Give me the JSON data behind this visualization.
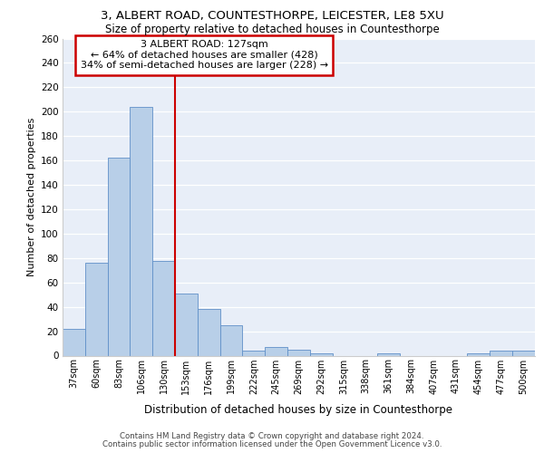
{
  "title1": "3, ALBERT ROAD, COUNTESTHORPE, LEICESTER, LE8 5XU",
  "title2": "Size of property relative to detached houses in Countesthorpe",
  "xlabel": "Distribution of detached houses by size in Countesthorpe",
  "ylabel": "Number of detached properties",
  "categories": [
    "37sqm",
    "60sqm",
    "83sqm",
    "106sqm",
    "130sqm",
    "153sqm",
    "176sqm",
    "199sqm",
    "222sqm",
    "245sqm",
    "269sqm",
    "292sqm",
    "315sqm",
    "338sqm",
    "361sqm",
    "384sqm",
    "407sqm",
    "431sqm",
    "454sqm",
    "477sqm",
    "500sqm"
  ],
  "values": [
    22,
    76,
    162,
    204,
    78,
    51,
    38,
    25,
    4,
    7,
    5,
    2,
    0,
    0,
    2,
    0,
    0,
    0,
    2,
    4,
    4
  ],
  "bar_color": "#b8cfe8",
  "bar_edge_color": "#6090c8",
  "bg_color": "#e8eef8",
  "grid_color": "#ffffff",
  "vline_x_idx": 4,
  "vline_color": "#cc0000",
  "annotation_line1": "3 ALBERT ROAD: 127sqm",
  "annotation_line2": "← 64% of detached houses are smaller (428)",
  "annotation_line3": "34% of semi-detached houses are larger (228) →",
  "annotation_box_color": "#cc0000",
  "footer1": "Contains HM Land Registry data © Crown copyright and database right 2024.",
  "footer2": "Contains public sector information licensed under the Open Government Licence v3.0.",
  "ylim_max": 260,
  "yticks": [
    0,
    20,
    40,
    60,
    80,
    100,
    120,
    140,
    160,
    180,
    200,
    220,
    240,
    260
  ]
}
